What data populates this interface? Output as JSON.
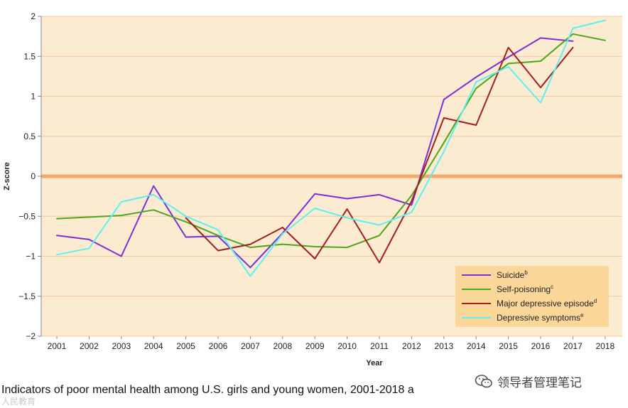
{
  "chart_data": {
    "type": "line",
    "title": "",
    "xlabel": "Year",
    "ylabel": "Z-score",
    "ylim": [
      -2,
      2
    ],
    "yticks": [
      2,
      1.5,
      1,
      0.5,
      0,
      -0.5,
      -1,
      -1.5,
      -2
    ],
    "ytick_labels": [
      "2",
      "1.5",
      "1",
      "0.5",
      "0",
      "−0.5",
      "−1",
      "−1.5",
      "−2"
    ],
    "categories": [
      "2001",
      "2002",
      "2003",
      "2004",
      "2005",
      "2006",
      "2007",
      "2008",
      "2009",
      "2010",
      "2011",
      "2012",
      "2013",
      "2014",
      "2015",
      "2016",
      "2017",
      "2018"
    ],
    "legend_position": "bottom-right",
    "series": [
      {
        "name": "Suicide",
        "sup": "b",
        "color": "#7b2fd6",
        "values": [
          -0.74,
          -0.79,
          -1.0,
          -0.12,
          -0.76,
          -0.75,
          -1.14,
          -0.71,
          -0.22,
          -0.28,
          -0.23,
          -0.36,
          0.96,
          1.24,
          1.49,
          1.73,
          1.69,
          null
        ]
      },
      {
        "name": "Self-poisoning",
        "sup": "c",
        "color": "#4ca71d",
        "values": [
          -0.53,
          -0.51,
          -0.49,
          -0.42,
          -0.57,
          -0.74,
          -0.89,
          -0.85,
          -0.88,
          -0.89,
          -0.74,
          -0.24,
          0.42,
          1.1,
          1.41,
          1.44,
          1.78,
          1.7
        ]
      },
      {
        "name": "Major depressive episode",
        "sup": "d",
        "color": "#a41e1e",
        "values": [
          null,
          null,
          null,
          null,
          -0.52,
          -0.93,
          -0.85,
          -0.64,
          -1.03,
          -0.41,
          -1.08,
          -0.31,
          0.73,
          0.64,
          1.61,
          1.11,
          1.61,
          null
        ]
      },
      {
        "name": "Depressive symptoms",
        "sup": "e",
        "color": "#5ef0ef",
        "values": [
          -0.98,
          -0.9,
          -0.32,
          -0.23,
          -0.5,
          -0.67,
          -1.25,
          -0.72,
          -0.4,
          -0.52,
          -0.61,
          -0.45,
          0.31,
          1.18,
          1.37,
          0.92,
          1.85,
          1.95
        ]
      }
    ],
    "colors": {
      "plot_background": "#fbebd1",
      "gridline": "#f6c79c",
      "zero_line": "#f8a76a",
      "legend_background": "#fbd79a",
      "axis": "#888888"
    }
  },
  "caption": "Indicators of poor mental health among U.S. girls and young women, 2001-2018 a",
  "watermark": {
    "left": "人民教育",
    "right": "领导者管理笔记",
    "icon": "wechat-logo-icon"
  }
}
